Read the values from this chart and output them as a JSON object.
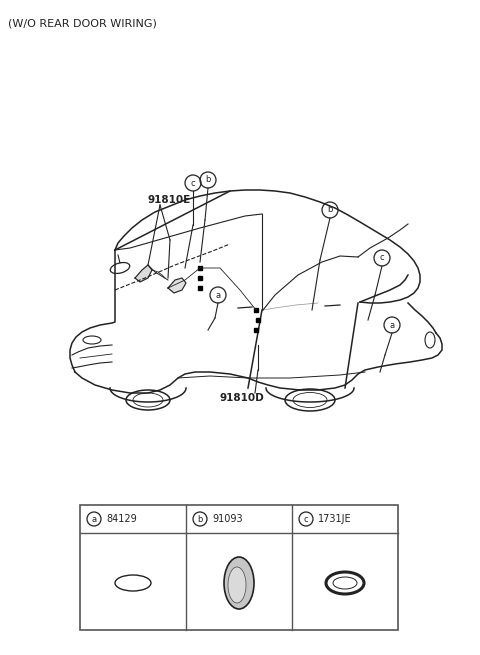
{
  "bg_color": "#ffffff",
  "title_text": "(W/O REAR DOOR WIRING)",
  "title_fontsize": 8,
  "label_91810E": "91810E",
  "label_91810D": "91810D",
  "parts": [
    {
      "label": "a",
      "part_no": "84129"
    },
    {
      "label": "b",
      "part_no": "91093"
    },
    {
      "label": "c",
      "part_no": "1731JE"
    }
  ],
  "line_color": "#222222",
  "circle_label_color": "#222222",
  "table_border_color": "#555555"
}
